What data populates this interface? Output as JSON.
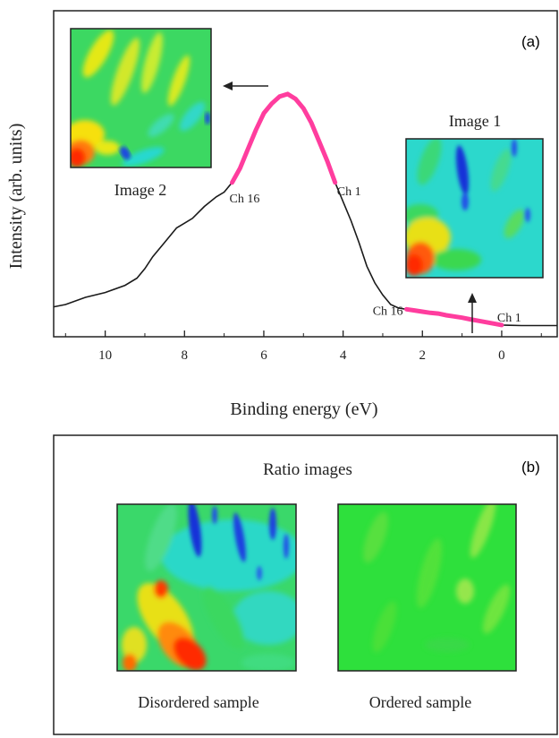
{
  "panel_a": {
    "label": "(a)",
    "image1": {
      "title": "Image 1"
    },
    "image2": {
      "title": "Image 2"
    }
  },
  "panel_b": {
    "label": "(b)",
    "title": "Ratio images",
    "left_caption": "Disordered sample",
    "right_caption": "Ordered sample"
  },
  "colors": {
    "curve": "#1a1a1a",
    "highlight": "#ff3d9e",
    "map_red": "#ff2a00",
    "map_yellow": "#f5e400",
    "map_green": "#22d84a",
    "map_cyan": "#1ce0e0",
    "map_blue": "#1838d8"
  },
  "chart_data": {
    "type": "line",
    "xlabel": "Binding energy (eV)",
    "ylabel": "Intensity (arb. units)",
    "x_reversed": true,
    "xlim": [
      11.3,
      -1.4
    ],
    "ylim": [
      0,
      1
    ],
    "xticks": [
      10,
      8,
      6,
      4,
      2,
      0
    ],
    "series": [
      {
        "x": [
          11.3,
          11.0,
          10.5,
          10.0,
          9.5,
          9.2,
          9.0,
          8.8,
          8.5,
          8.2,
          8.0,
          7.8,
          7.5,
          7.2,
          7.0,
          6.8,
          6.6,
          6.4,
          6.2,
          6.0,
          5.8,
          5.6,
          5.4,
          5.2,
          5.0,
          4.8,
          4.6,
          4.4,
          4.2,
          4.0,
          3.8,
          3.6,
          3.4,
          3.2,
          3.0,
          2.8,
          2.6,
          2.4,
          2.2,
          2.0,
          1.8,
          1.6,
          1.4,
          1.2,
          1.0,
          0.8,
          0.6,
          0.4,
          0.2,
          0.0,
          -0.2,
          -0.5,
          -1.0,
          -1.4
        ],
        "y": [
          0.08,
          0.09,
          0.12,
          0.14,
          0.17,
          0.2,
          0.24,
          0.29,
          0.35,
          0.41,
          0.43,
          0.45,
          0.5,
          0.54,
          0.56,
          0.6,
          0.66,
          0.74,
          0.82,
          0.89,
          0.93,
          0.96,
          0.97,
          0.95,
          0.91,
          0.85,
          0.77,
          0.69,
          0.6,
          0.52,
          0.44,
          0.35,
          0.25,
          0.18,
          0.13,
          0.09,
          0.075,
          0.07,
          0.065,
          0.06,
          0.055,
          0.052,
          0.045,
          0.04,
          0.035,
          0.028,
          0.022,
          0.016,
          0.01,
          0.004,
          0.003,
          0.002,
          0.002,
          0.002
        ]
      }
    ],
    "highlights": [
      {
        "label_start": "Ch 16",
        "label_end": "Ch 1",
        "x_from": 6.8,
        "x_to": 4.2
      },
      {
        "label_start": "Ch 16",
        "label_end": "Ch 1",
        "x_from": 2.4,
        "x_to": 0.0
      }
    ],
    "grid": false
  }
}
